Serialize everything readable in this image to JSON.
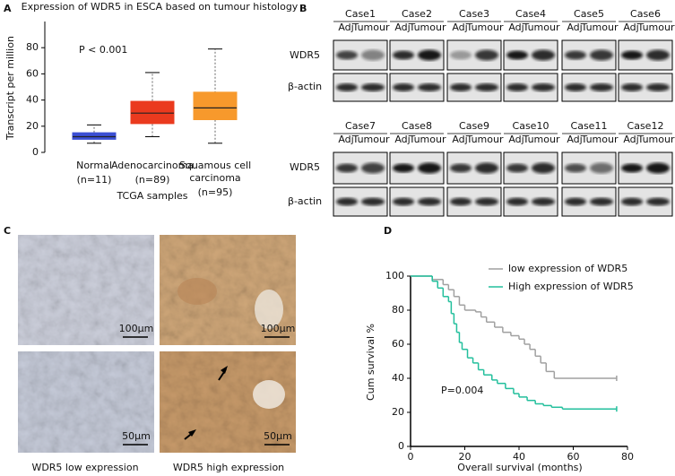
{
  "panels": [
    "A",
    "B",
    "C",
    "D"
  ],
  "chart_data": [
    {
      "type": "box",
      "title": "Expression of WDR5 in ESCA based on tumour histology",
      "y_label": "Transcript per million",
      "x_label": "TCGA samples",
      "annotation": "P < 0.001",
      "categories": [
        "Normal",
        "Adenocarcinoma",
        "Squamous cell carcinoma"
      ],
      "counts": [
        "(n=11)",
        "(n=89)",
        "(n=95)"
      ],
      "boxes": [
        {
          "min": 7,
          "q1": 10,
          "median": 12,
          "q3": 15,
          "max": 21,
          "color": "#3b4fd4"
        },
        {
          "min": 12,
          "q1": 22,
          "median": 30,
          "q3": 39,
          "max": 61,
          "color": "#ea3a1e"
        },
        {
          "min": 7,
          "q1": 25,
          "median": 34,
          "q3": 46,
          "max": 79,
          "color": "#f7992c"
        }
      ],
      "ylim": [
        0,
        100
      ],
      "yticks": [
        0,
        20,
        40,
        60,
        80
      ]
    },
    {
      "type": "line",
      "step": true,
      "x_label": "Overall survival (months)",
      "y_label": "Cum survival %",
      "annotation": "P=0.004",
      "legend": "upper right",
      "xlim": [
        0,
        80
      ],
      "xticks": [
        0,
        20,
        40,
        60,
        80
      ],
      "ylim": [
        0,
        100
      ],
      "yticks": [
        0,
        20,
        40,
        60,
        80,
        100
      ],
      "series": [
        {
          "name": "low expression of WDR5",
          "color": "#a0a0a0",
          "x": [
            0,
            8,
            12,
            14,
            16,
            18,
            20,
            24,
            26,
            28,
            31,
            34,
            37,
            40,
            42,
            44,
            46,
            48,
            50,
            53,
            76
          ],
          "values": [
            100,
            98,
            95,
            92,
            88,
            83,
            80,
            79,
            76,
            73,
            70,
            67,
            65,
            63,
            60,
            57,
            53,
            49,
            44,
            40,
            40
          ]
        },
        {
          "name": "High expression of WDR5",
          "color": "#22bf9c",
          "x": [
            0,
            8,
            10,
            12,
            14,
            15,
            16,
            17,
            18,
            19,
            21,
            23,
            25,
            27,
            30,
            32,
            35,
            38,
            40,
            43,
            46,
            49,
            52,
            56,
            76
          ],
          "values": [
            100,
            97,
            93,
            88,
            85,
            78,
            72,
            67,
            61,
            57,
            52,
            49,
            45,
            42,
            39,
            37,
            34,
            31,
            29,
            27,
            25,
            24,
            23,
            22,
            22
          ]
        }
      ]
    }
  ],
  "blot": {
    "cases": [
      "Case1",
      "Case2",
      "Case3",
      "Case4",
      "Case5",
      "Case6",
      "Case7",
      "Case8",
      "Case9",
      "Case10",
      "Case11",
      "Case12"
    ],
    "lanes": [
      "Adj",
      "Tumour"
    ],
    "rows": [
      "WDR5",
      "β-actin"
    ]
  },
  "ihc": {
    "scale_bars": [
      "100μm",
      "50μm"
    ],
    "captions": [
      "WDR5 low expression",
      "WDR5 high expression"
    ]
  }
}
